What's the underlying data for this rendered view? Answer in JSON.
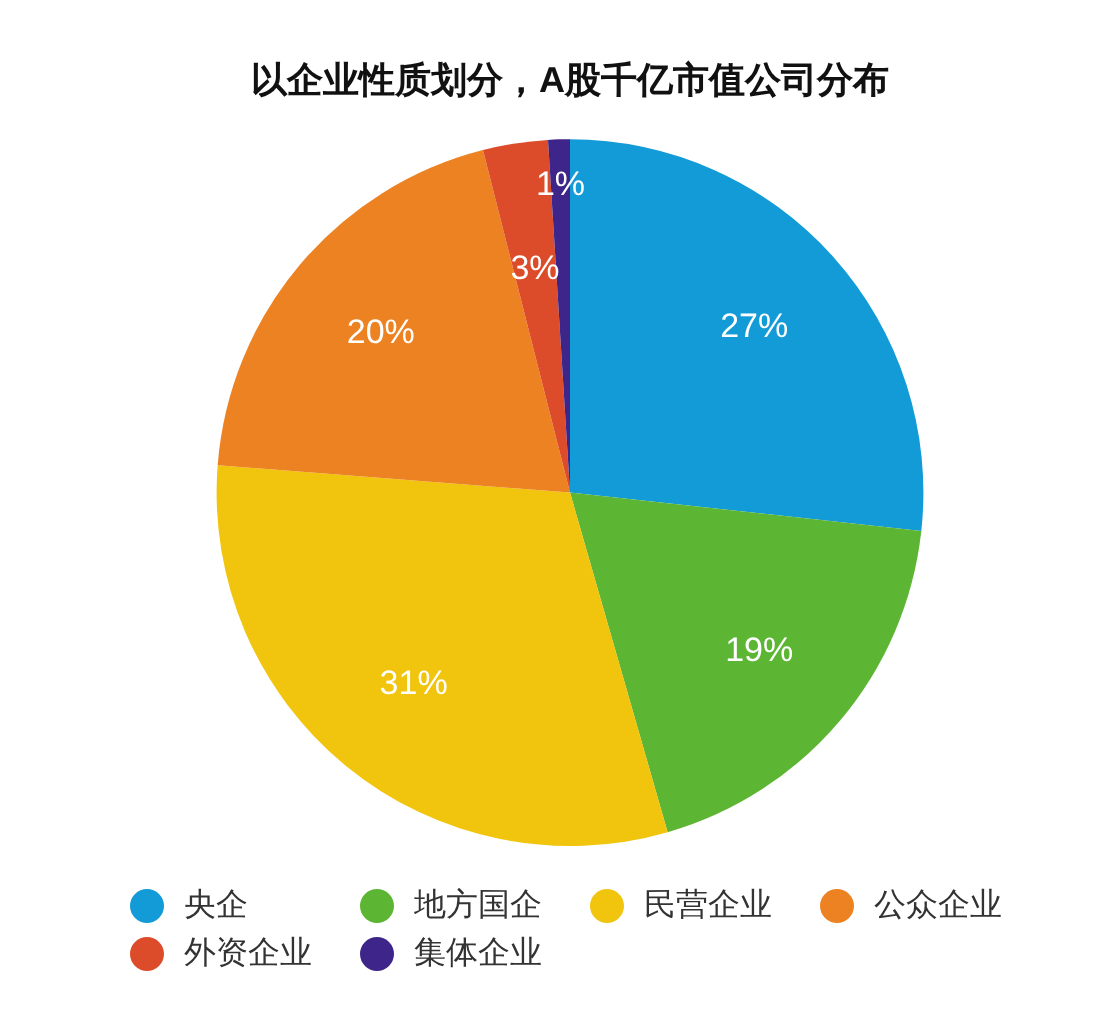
{
  "chart_data": {
    "type": "pie",
    "title": "以企业性质划分，A股千亿市值公司分布",
    "categories": [
      "央企",
      "地方国企",
      "民营企业",
      "公众企业",
      "外资企业",
      "集体企业"
    ],
    "values": [
      27,
      19,
      31,
      20,
      3,
      1
    ],
    "colors": [
      "#129bd6",
      "#5cb533",
      "#f1c40d",
      "#ed8222",
      "#dd4c2a",
      "#3d2589"
    ],
    "value_labels": [
      "27%",
      "19%",
      "31%",
      "20%",
      "3%",
      "1%"
    ],
    "legend": "bottom"
  }
}
